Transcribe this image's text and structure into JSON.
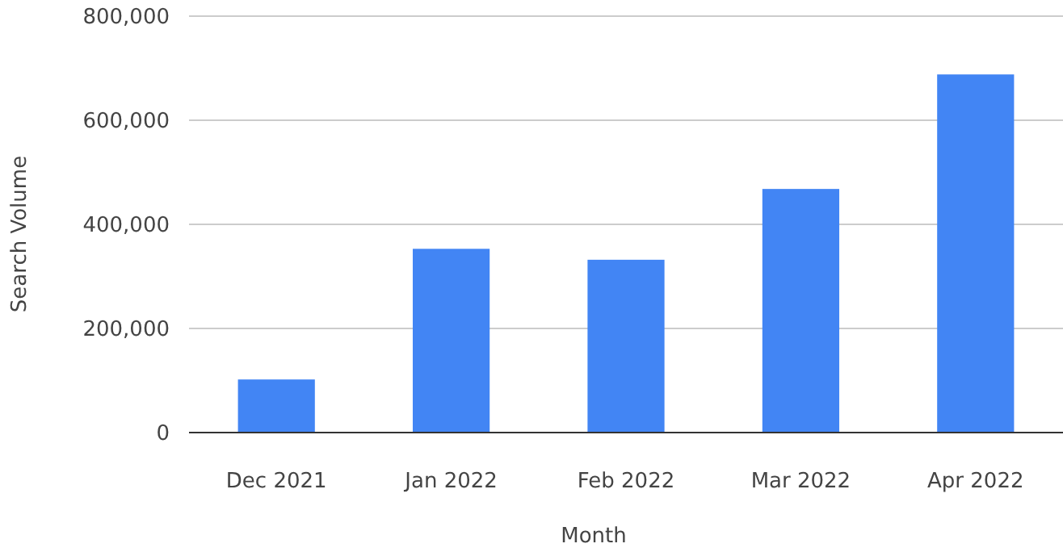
{
  "chart_data": {
    "type": "bar",
    "xlabel": "Month",
    "ylabel": "Search Volume",
    "categories": [
      "Dec 2021",
      "Jan 2022",
      "Feb 2022",
      "Mar 2022",
      "Apr 2022"
    ],
    "values": [
      102000,
      353000,
      332000,
      468000,
      688000
    ],
    "color": "#4285f4",
    "ylim": [
      0,
      800000
    ],
    "yticks": [
      {
        "value": 0,
        "label": "0"
      },
      {
        "value": 200000,
        "label": "200,000"
      },
      {
        "value": 400000,
        "label": "400,000"
      },
      {
        "value": 600000,
        "label": "600,000"
      },
      {
        "value": 800000,
        "label": "800,000"
      }
    ],
    "grid": true
  }
}
